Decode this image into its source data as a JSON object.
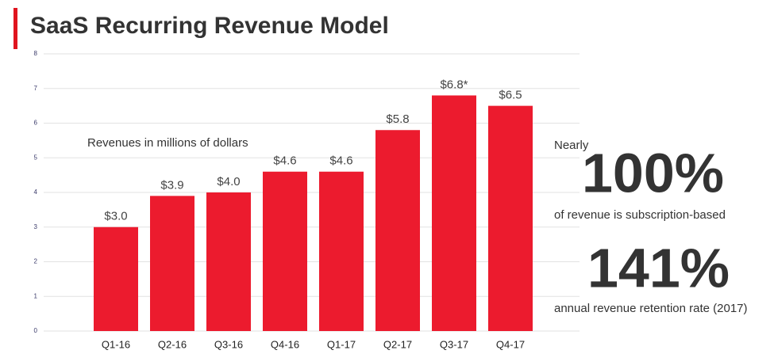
{
  "chart_data": {
    "type": "bar",
    "title": "SaaS Recurring Revenue Model",
    "categories": [
      "Q1-16",
      "Q2-16",
      "Q3-16",
      "Q4-16",
      "Q1-17",
      "Q2-17",
      "Q3-17",
      "Q4-17"
    ],
    "values": [
      3.0,
      3.9,
      4.0,
      4.6,
      4.6,
      5.8,
      6.8,
      6.5
    ],
    "value_labels": [
      "$3.0",
      "$3.9",
      "$4.0",
      "$4.6",
      "$4.6",
      "$5.8",
      "$6.8*",
      "$6.5"
    ],
    "color": "#ec1b2e",
    "ylim": [
      0,
      8
    ],
    "yticks": [
      0,
      1,
      2,
      3,
      4,
      5,
      6,
      7,
      8
    ],
    "grid": true,
    "annotation": "Revenues in millions of dollars",
    "callouts": [
      {
        "prefix": "Nearly",
        "figure": "100%",
        "text": "of revenue is subscription-based"
      },
      {
        "figure": "141%",
        "text": "annual revenue retention rate (2017)"
      }
    ]
  }
}
